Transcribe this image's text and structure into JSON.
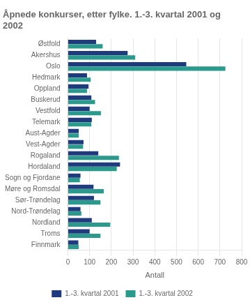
{
  "chart_data": {
    "type": "bar",
    "orientation": "horizontal",
    "title": "Åpnede konkurser, etter fylke. 1.-3. kvartal 2001 og\n2002",
    "categories": [
      "Østfold",
      "Akershus",
      "Oslo",
      "Hedmark",
      "Oppland",
      "Buskerud",
      "Vestfold",
      "Telemark",
      "Aust-Agder",
      "Vest-Agder",
      "Rogaland",
      "Hordaland",
      "Sogn og Fjordane",
      "Møre og Romsdal",
      "Sør-Trøndelag",
      "Nord-Trøndelag",
      "Nordland",
      "Troms",
      "Finnmark"
    ],
    "series": [
      {
        "name": "1.-3. kvartal 2001",
        "color": "#1f3a7d",
        "values": [
          130,
          275,
          545,
          88,
          95,
          108,
          100,
          110,
          50,
          72,
          140,
          240,
          58,
          118,
          120,
          58,
          110,
          100,
          48
        ]
      },
      {
        "name": "1.-3. kvartal 2002",
        "color": "#2a9a8c",
        "values": [
          160,
          310,
          725,
          105,
          88,
          125,
          152,
          108,
          50,
          70,
          235,
          225,
          55,
          165,
          150,
          62,
          195,
          150,
          50
        ]
      }
    ],
    "xlabel": "Antall",
    "xlim": [
      0,
      800
    ],
    "xticks": [
      0,
      100,
      200,
      300,
      400,
      500,
      600,
      700,
      800
    ],
    "grid": true,
    "legend": "bottom"
  }
}
